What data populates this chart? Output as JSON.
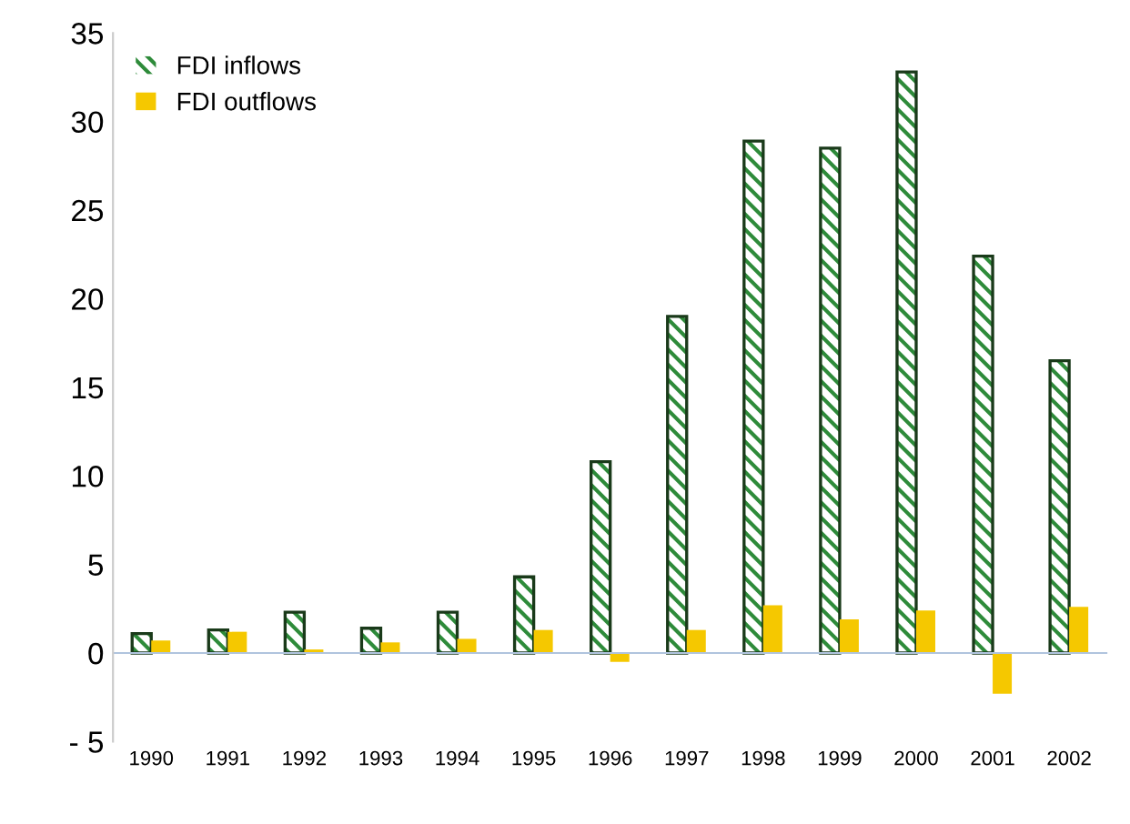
{
  "chart_data": {
    "type": "bar",
    "categories": [
      "1990",
      "1991",
      "1992",
      "1993",
      "1994",
      "1995",
      "1996",
      "1997",
      "1998",
      "1999",
      "2000",
      "2001",
      "2002"
    ],
    "series": [
      {
        "name": "FDI inflows",
        "color": "#2e8b3a",
        "values": [
          1.1,
          1.3,
          2.3,
          1.4,
          2.3,
          4.3,
          10.8,
          19.0,
          28.9,
          28.5,
          32.8,
          22.4,
          16.5
        ]
      },
      {
        "name": "FDI outflows",
        "color": "#f5c800",
        "values": [
          0.7,
          1.2,
          0.2,
          0.6,
          0.8,
          1.3,
          -0.5,
          1.3,
          2.7,
          1.9,
          2.4,
          -2.3,
          2.6
        ]
      }
    ],
    "ylim": [
      -5,
      35
    ],
    "yticks": [
      {
        "value": -5,
        "label": "- 5"
      },
      0,
      5,
      10,
      15,
      20,
      25,
      30,
      35
    ],
    "grid": false,
    "ref_lines": [
      {
        "axis": "y",
        "value": 0,
        "color": "#b0c4de"
      }
    ],
    "legend": "top left"
  }
}
